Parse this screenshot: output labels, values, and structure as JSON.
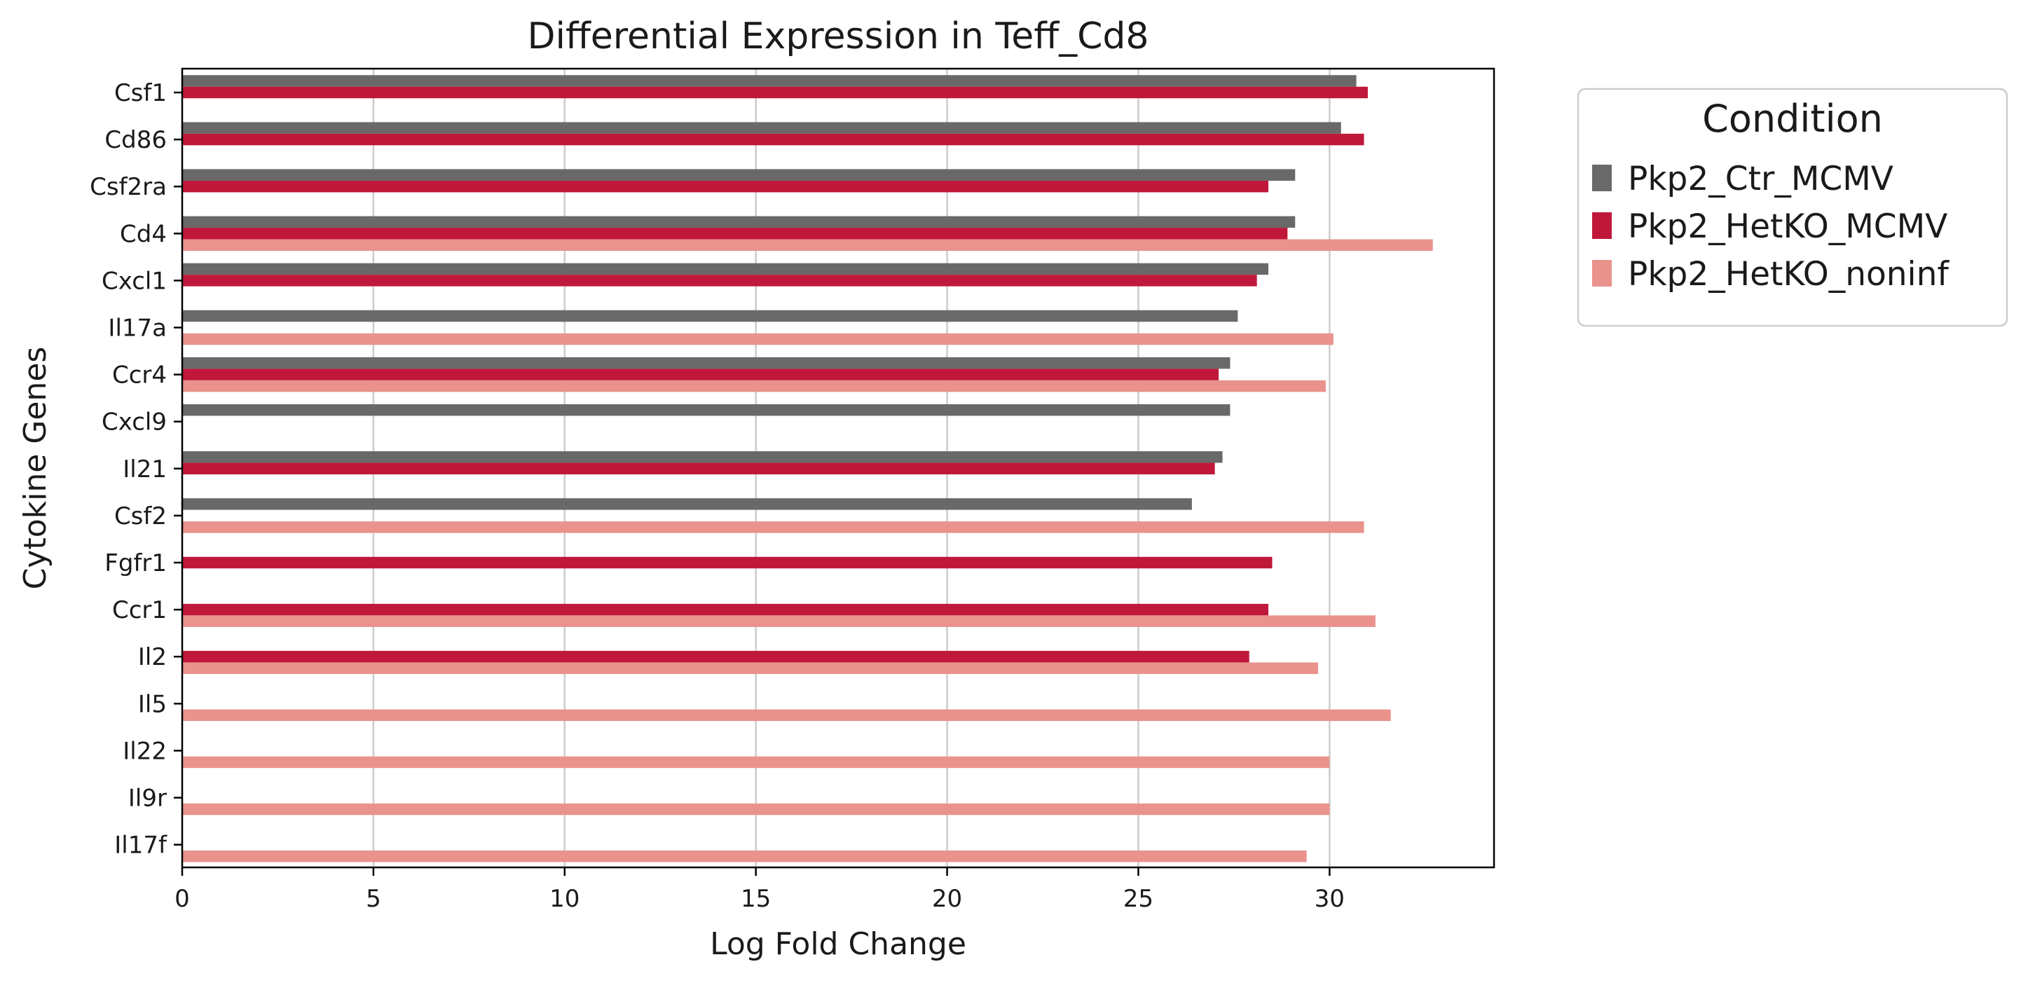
{
  "chart_data": {
    "type": "bar",
    "orientation": "horizontal",
    "title": "Differential Expression in Teff_Cd8",
    "xlabel": "Log Fold Change",
    "ylabel": "Cytokine Genes",
    "xlim": [
      0,
      34.3
    ],
    "xticks": [
      0,
      5,
      10,
      15,
      20,
      25,
      30
    ],
    "grid": "vertical",
    "categories": [
      "Csf1",
      "Cd86",
      "Csf2ra",
      "Cd4",
      "Cxcl1",
      "Il17a",
      "Ccr4",
      "Cxcl9",
      "Il21",
      "Csf2",
      "Fgfr1",
      "Ccr1",
      "Il2",
      "Il5",
      "Il22",
      "Il9r",
      "Il17f"
    ],
    "legend": {
      "title": "Condition",
      "placement": "outside-top-right"
    },
    "series": [
      {
        "name": "Pkp2_Ctr_MCMV",
        "color": "#696969",
        "values": [
          30.7,
          30.3,
          29.1,
          29.1,
          28.4,
          27.6,
          27.4,
          27.4,
          27.2,
          26.4,
          null,
          null,
          null,
          null,
          null,
          null,
          null
        ]
      },
      {
        "name": "Pkp2_HetKO_MCMV",
        "color": "#c0183a",
        "values": [
          31.0,
          30.9,
          28.4,
          28.9,
          28.1,
          null,
          27.1,
          null,
          27.0,
          null,
          28.5,
          28.4,
          27.9,
          null,
          null,
          null,
          null
        ]
      },
      {
        "name": "Pkp2_HetKO_noninf",
        "color": "#ea928c",
        "values": [
          null,
          null,
          null,
          32.7,
          null,
          30.1,
          29.9,
          null,
          null,
          30.9,
          null,
          31.2,
          29.7,
          31.6,
          30.0,
          30.0,
          29.4
        ]
      }
    ]
  }
}
